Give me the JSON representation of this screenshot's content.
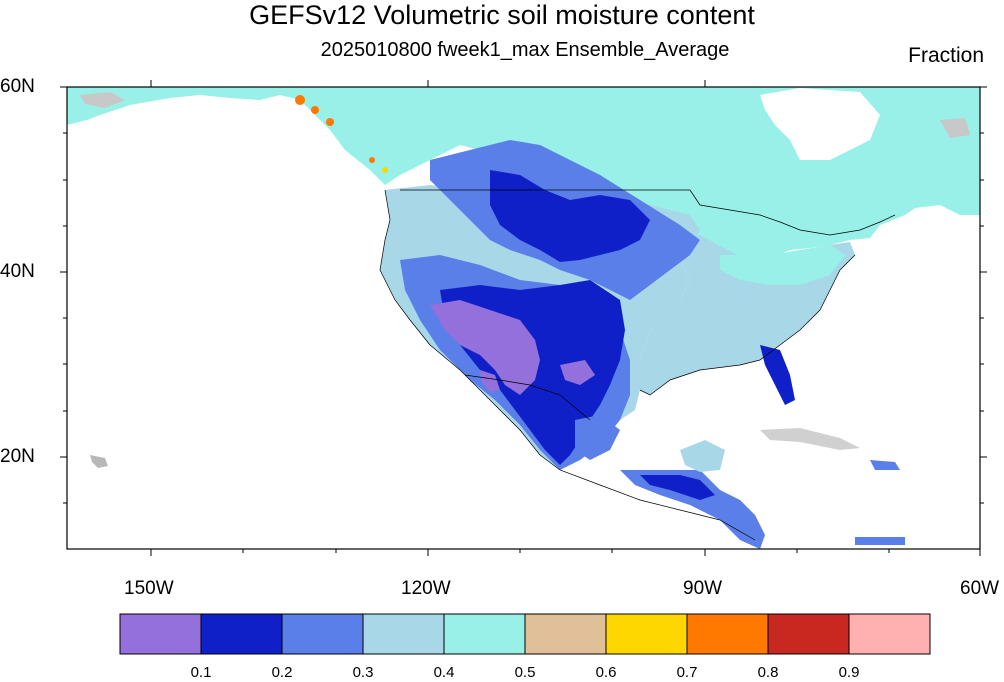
{
  "header": {
    "title": "GEFSv12 Volumetric soil moisture content",
    "subtitle": "2025010800 fweek1_max Ensemble_Average",
    "units": "Fraction"
  },
  "axes": {
    "lat_labels": [
      "60N",
      "40N",
      "20N"
    ],
    "lon_labels": [
      "150W",
      "120W",
      "90W",
      "60W"
    ]
  },
  "colorbar": {
    "colors": [
      "#9370db",
      "#1020c8",
      "#5b7fe8",
      "#a8d8e8",
      "#98f0e8",
      "#e0c098",
      "#ffd700",
      "#ff7800",
      "#c82820",
      "#ffb0b0"
    ],
    "labels": [
      "0.1",
      "0.2",
      "0.3",
      "0.4",
      "0.5",
      "0.6",
      "0.7",
      "0.8",
      "0.9"
    ]
  }
}
